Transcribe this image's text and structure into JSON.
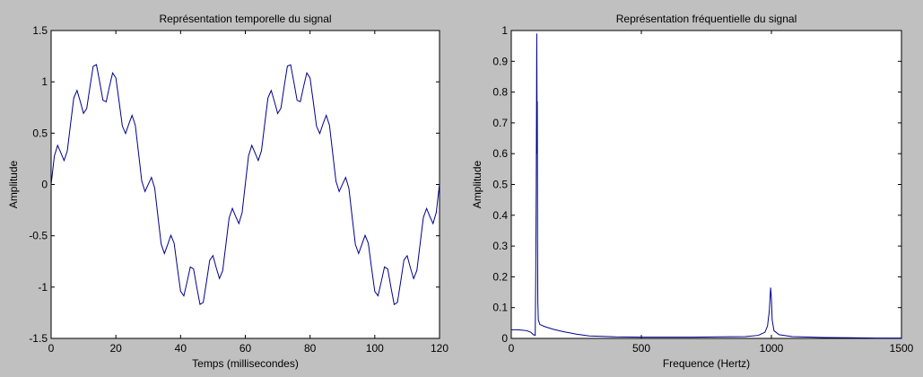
{
  "chart_data": [
    {
      "type": "line",
      "title": "Représentation temporelle du signal",
      "xlabel": "Temps (millisecondes)",
      "ylabel": "Amplitude",
      "xlim": [
        0,
        120
      ],
      "ylim": [
        -1.5,
        1.5
      ],
      "xticks": [
        0,
        20,
        40,
        60,
        80,
        100,
        120
      ],
      "yticks": [
        -1.5,
        -1,
        -0.5,
        0,
        0.5,
        1,
        1.5
      ],
      "xtick_labels": [
        "0",
        "20",
        "40",
        "60",
        "80",
        "100",
        "120"
      ],
      "ytick_labels": [
        "-1.5",
        "-1",
        "-0.5",
        "0",
        "0.5",
        "1",
        "1.5"
      ],
      "grid": false,
      "line_color": "#00008b",
      "signal": {
        "components": [
          {
            "amplitude": 1,
            "frequency_hz": 16.67
          },
          {
            "amplitude": 0.2,
            "frequency_hz": 166.7
          }
        ],
        "sample_step_ms": 1
      }
    },
    {
      "type": "line",
      "title": "Représentation fréquentielle du signal",
      "xlabel": "Frequence (Hertz)",
      "ylabel": "Amplitude",
      "xlim": [
        0,
        1500
      ],
      "ylim": [
        0,
        1
      ],
      "xticks": [
        0,
        500,
        1000,
        1500
      ],
      "yticks": [
        0,
        0.1,
        0.2,
        0.3,
        0.4,
        0.5,
        0.6,
        0.7,
        0.8,
        0.9,
        1
      ],
      "xtick_labels": [
        "0",
        "500",
        "1000",
        "1500"
      ],
      "ytick_labels": [
        "0",
        "0.1",
        "0.2",
        "0.3",
        "0.4",
        "0.5",
        "0.6",
        "0.7",
        "0.8",
        "0.9",
        "1"
      ],
      "grid": false,
      "line_color": "#00008b",
      "peaks": [
        {
          "x": 100,
          "y": 0.99
        },
        {
          "x": 1000,
          "y": 0.165
        }
      ],
      "points": [
        [
          0,
          0.028
        ],
        [
          20,
          0.028
        ],
        [
          40,
          0.027
        ],
        [
          60,
          0.025
        ],
        [
          75,
          0.02
        ],
        [
          85,
          0.012
        ],
        [
          92,
          0.01
        ],
        [
          94,
          0.2
        ],
        [
          96,
          0.5
        ],
        [
          98,
          0.99
        ],
        [
          99.5,
          0.6
        ],
        [
          100,
          0.77
        ],
        [
          101,
          0.35
        ],
        [
          102,
          0.12
        ],
        [
          104,
          0.06
        ],
        [
          110,
          0.045
        ],
        [
          130,
          0.038
        ],
        [
          160,
          0.03
        ],
        [
          200,
          0.022
        ],
        [
          250,
          0.014
        ],
        [
          300,
          0.008
        ],
        [
          400,
          0.005
        ],
        [
          500,
          0.004
        ],
        [
          600,
          0.004
        ],
        [
          700,
          0.004
        ],
        [
          800,
          0.005
        ],
        [
          900,
          0.006
        ],
        [
          950,
          0.01
        ],
        [
          975,
          0.02
        ],
        [
          985,
          0.04
        ],
        [
          992,
          0.09
        ],
        [
          997,
          0.165
        ],
        [
          1000,
          0.13
        ],
        [
          1003,
          0.06
        ],
        [
          1010,
          0.025
        ],
        [
          1030,
          0.012
        ],
        [
          1080,
          0.006
        ],
        [
          1200,
          0.003
        ],
        [
          1300,
          0.002
        ],
        [
          1400,
          0.001
        ],
        [
          1500,
          0.001
        ]
      ]
    }
  ]
}
